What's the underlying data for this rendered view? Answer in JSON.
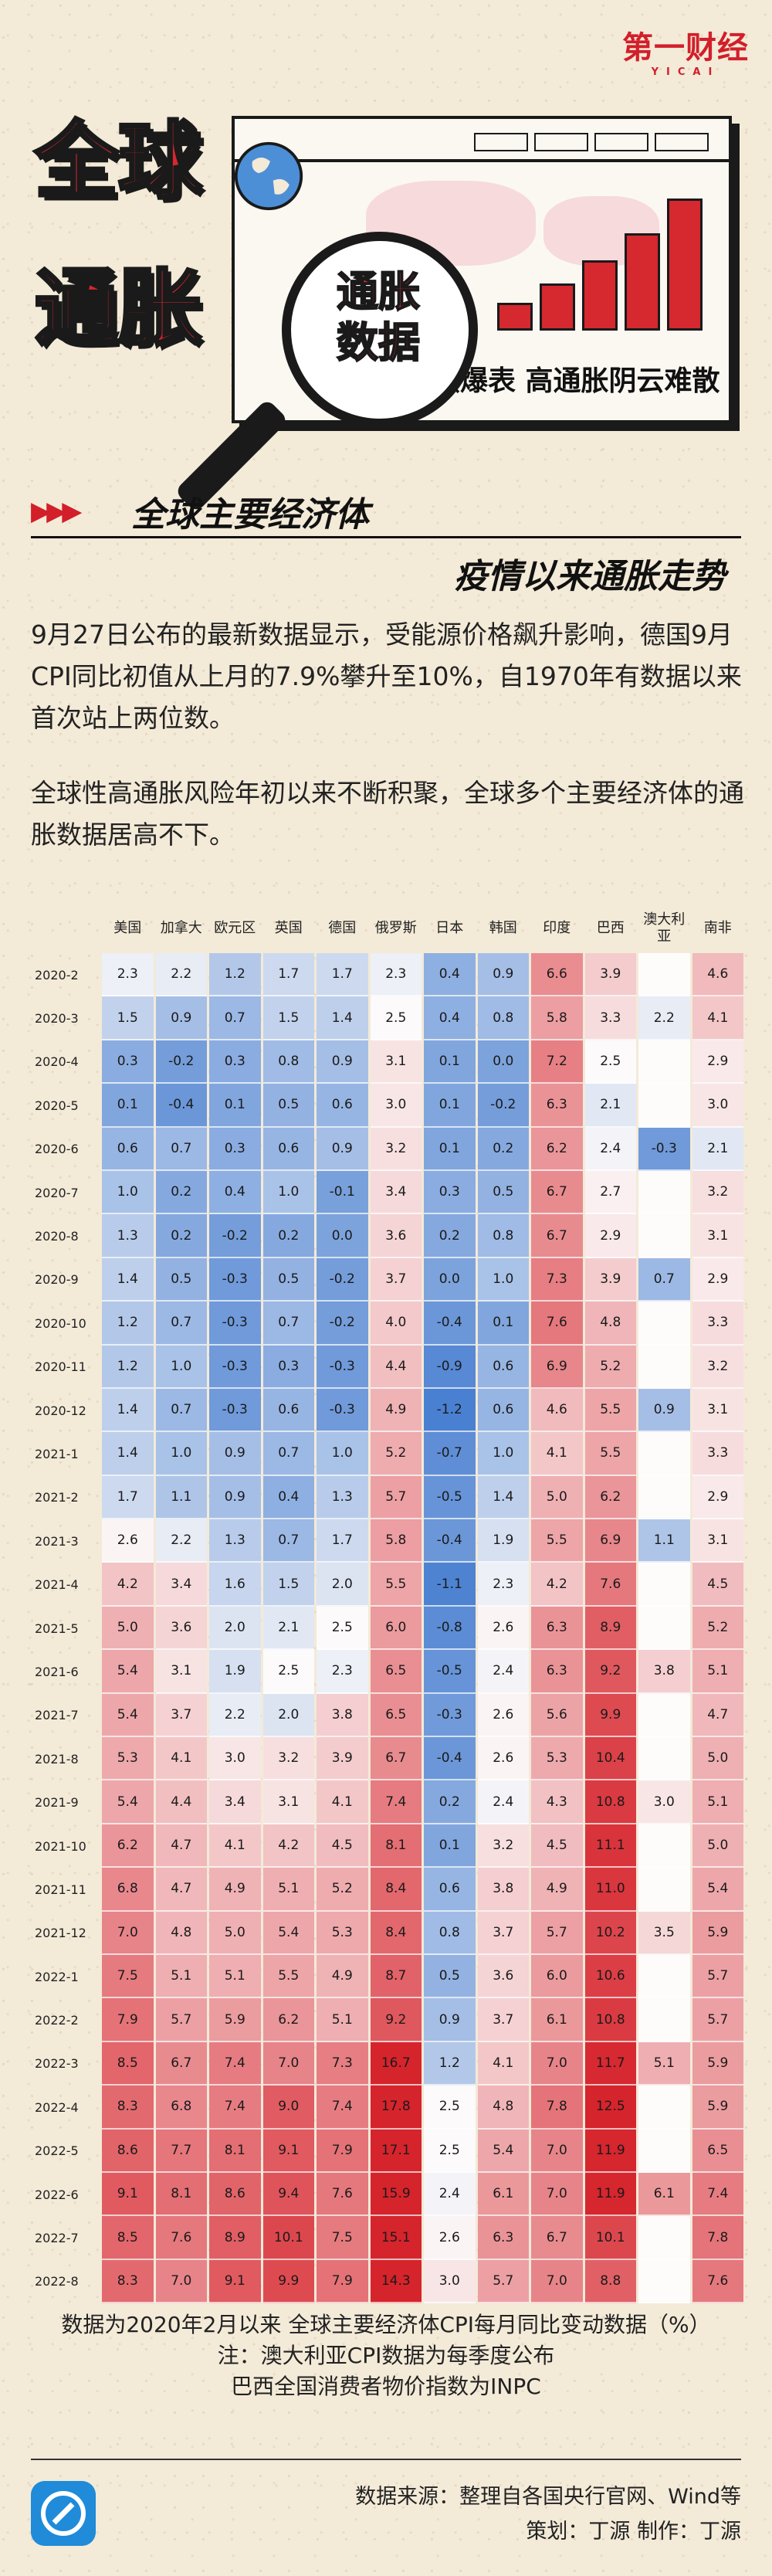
{
  "logo": {
    "main": "第一财经",
    "sub": "YICAI"
  },
  "header": {
    "big_title_line1": "全球",
    "big_title_line2": "通胀",
    "badge_line1": "通胀",
    "badge_line2": "数据",
    "slogan": "持续爆表  高通胀阴云难散"
  },
  "colors": {
    "accent_red": "#d5282f",
    "swatch_colors": [
      "#5b8fd6",
      "#c7d7ee",
      "#ee9a9f",
      "#d5282f"
    ]
  },
  "section": {
    "title_1": "全球主要经济体",
    "title_2": "疫情以来通胀走势"
  },
  "paragraphs": [
    "9月27日公布的最新数据显示，受能源价格飙升影响，德国9月CPI同比初值从上月的7.9%攀升至10%，自1970年有数据以来首次站上两位数。",
    "全球性高通胀风险年初以来不断积聚，全球多个主要经济体的通胀数据居高不下。"
  ],
  "chart_data": {
    "type": "heatmap",
    "countries": [
      "美国",
      "加拿大",
      "欧元区",
      "英国",
      "德国",
      "俄罗斯",
      "日本",
      "韩国",
      "印度",
      "巴西",
      "澳大利亚",
      "南非"
    ],
    "months": [
      "2020-2",
      "2020-3",
      "2020-4",
      "2020-5",
      "2020-6",
      "2020-7",
      "2020-8",
      "2020-9",
      "2020-10",
      "2020-11",
      "2020-12",
      "2021-1",
      "2021-2",
      "2021-3",
      "2021-4",
      "2021-5",
      "2021-6",
      "2021-7",
      "2021-8",
      "2021-9",
      "2021-10",
      "2021-11",
      "2021-12",
      "2022-1",
      "2022-2",
      "2022-3",
      "2022-4",
      "2022-5",
      "2022-6",
      "2022-7",
      "2022-8"
    ],
    "values": [
      [
        "2.3",
        "2.2",
        "1.2",
        "1.7",
        "1.7",
        "2.3",
        "0.4",
        "0.9",
        "6.6",
        "3.9",
        "",
        "4.6"
      ],
      [
        "1.5",
        "0.9",
        "0.7",
        "1.5",
        "1.4",
        "2.5",
        "0.4",
        "0.8",
        "5.8",
        "3.3",
        "2.2",
        "4.1"
      ],
      [
        "0.3",
        "-0.2",
        "0.3",
        "0.8",
        "0.9",
        "3.1",
        "0.1",
        "0.0",
        "7.2",
        "2.5",
        "",
        "2.9"
      ],
      [
        "0.1",
        "-0.4",
        "0.1",
        "0.5",
        "0.6",
        "3.0",
        "0.1",
        "-0.2",
        "6.3",
        "2.1",
        "",
        "3.0"
      ],
      [
        "0.6",
        "0.7",
        "0.3",
        "0.6",
        "0.9",
        "3.2",
        "0.1",
        "0.2",
        "6.2",
        "2.4",
        "-0.3",
        "2.1"
      ],
      [
        "1.0",
        "0.2",
        "0.4",
        "1.0",
        "-0.1",
        "3.4",
        "0.3",
        "0.5",
        "6.7",
        "2.7",
        "",
        "3.2"
      ],
      [
        "1.3",
        "0.2",
        "-0.2",
        "0.2",
        "0.0",
        "3.6",
        "0.2",
        "0.8",
        "6.7",
        "2.9",
        "",
        "3.1"
      ],
      [
        "1.4",
        "0.5",
        "-0.3",
        "0.5",
        "-0.2",
        "3.7",
        "0.0",
        "1.0",
        "7.3",
        "3.9",
        "0.7",
        "2.9"
      ],
      [
        "1.2",
        "0.7",
        "-0.3",
        "0.7",
        "-0.2",
        "4.0",
        "-0.4",
        "0.1",
        "7.6",
        "4.8",
        "",
        "3.3"
      ],
      [
        "1.2",
        "1.0",
        "-0.3",
        "0.3",
        "-0.3",
        "4.4",
        "-0.9",
        "0.6",
        "6.9",
        "5.2",
        "",
        "3.2"
      ],
      [
        "1.4",
        "0.7",
        "-0.3",
        "0.6",
        "-0.3",
        "4.9",
        "-1.2",
        "0.6",
        "4.6",
        "5.5",
        "0.9",
        "3.1"
      ],
      [
        "1.4",
        "1.0",
        "0.9",
        "0.7",
        "1.0",
        "5.2",
        "-0.7",
        "1.0",
        "4.1",
        "5.5",
        "",
        "3.3"
      ],
      [
        "1.7",
        "1.1",
        "0.9",
        "0.4",
        "1.3",
        "5.7",
        "-0.5",
        "1.4",
        "5.0",
        "6.2",
        "",
        "2.9"
      ],
      [
        "2.6",
        "2.2",
        "1.3",
        "0.7",
        "1.7",
        "5.8",
        "-0.4",
        "1.9",
        "5.5",
        "6.9",
        "1.1",
        "3.1"
      ],
      [
        "4.2",
        "3.4",
        "1.6",
        "1.5",
        "2.0",
        "5.5",
        "-1.1",
        "2.3",
        "4.2",
        "7.6",
        "",
        "4.5"
      ],
      [
        "5.0",
        "3.6",
        "2.0",
        "2.1",
        "2.5",
        "6.0",
        "-0.8",
        "2.6",
        "6.3",
        "8.9",
        "",
        "5.2"
      ],
      [
        "5.4",
        "3.1",
        "1.9",
        "2.5",
        "2.3",
        "6.5",
        "-0.5",
        "2.4",
        "6.3",
        "9.2",
        "3.8",
        "5.1"
      ],
      [
        "5.4",
        "3.7",
        "2.2",
        "2.0",
        "3.8",
        "6.5",
        "-0.3",
        "2.6",
        "5.6",
        "9.9",
        "",
        "4.7"
      ],
      [
        "5.3",
        "4.1",
        "3.0",
        "3.2",
        "3.9",
        "6.7",
        "-0.4",
        "2.6",
        "5.3",
        "10.4",
        "",
        "5.0"
      ],
      [
        "5.4",
        "4.4",
        "3.4",
        "3.1",
        "4.1",
        "7.4",
        "0.2",
        "2.4",
        "4.3",
        "10.8",
        "3.0",
        "5.1"
      ],
      [
        "6.2",
        "4.7",
        "4.1",
        "4.2",
        "4.5",
        "8.1",
        "0.1",
        "3.2",
        "4.5",
        "11.1",
        "",
        "5.0"
      ],
      [
        "6.8",
        "4.7",
        "4.9",
        "5.1",
        "5.2",
        "8.4",
        "0.6",
        "3.8",
        "4.9",
        "11.0",
        "",
        "5.4"
      ],
      [
        "7.0",
        "4.8",
        "5.0",
        "5.4",
        "5.3",
        "8.4",
        "0.8",
        "3.7",
        "5.7",
        "10.2",
        "3.5",
        "5.9"
      ],
      [
        "7.5",
        "5.1",
        "5.1",
        "5.5",
        "4.9",
        "8.7",
        "0.5",
        "3.6",
        "6.0",
        "10.6",
        "",
        "5.7"
      ],
      [
        "7.9",
        "5.7",
        "5.9",
        "6.2",
        "5.1",
        "9.2",
        "0.9",
        "3.7",
        "6.1",
        "10.8",
        "",
        "5.7"
      ],
      [
        "8.5",
        "6.7",
        "7.4",
        "7.0",
        "7.3",
        "16.7",
        "1.2",
        "4.1",
        "7.0",
        "11.7",
        "5.1",
        "5.9"
      ],
      [
        "8.3",
        "6.8",
        "7.4",
        "9.0",
        "7.4",
        "17.8",
        "2.5",
        "4.8",
        "7.8",
        "12.5",
        "",
        "5.9"
      ],
      [
        "8.6",
        "7.7",
        "8.1",
        "9.1",
        "7.9",
        "17.1",
        "2.5",
        "5.4",
        "7.0",
        "11.9",
        "",
        "6.5"
      ],
      [
        "9.1",
        "8.1",
        "8.6",
        "9.4",
        "7.6",
        "15.9",
        "2.4",
        "6.1",
        "7.0",
        "11.9",
        "6.1",
        "7.4"
      ],
      [
        "8.5",
        "7.6",
        "8.9",
        "10.1",
        "7.5",
        "15.1",
        "2.6",
        "6.3",
        "6.7",
        "10.1",
        "",
        "7.8"
      ],
      [
        "8.3",
        "7.0",
        "9.1",
        "9.9",
        "7.9",
        "14.3",
        "3.0",
        "5.7",
        "7.0",
        "8.8",
        "",
        "7.6"
      ]
    ]
  },
  "footnotes": [
    "数据为2020年2月以来 全球主要经济体CPI每月同比变动数据（%）",
    "注：澳大利亚CPI数据为每季度公布",
    "巴西全国消费者物价指数为INPC"
  ],
  "credits": {
    "source": "数据来源：整理自各国央行官网、Wind等",
    "staff": "策划：丁源 制作：丁源"
  }
}
